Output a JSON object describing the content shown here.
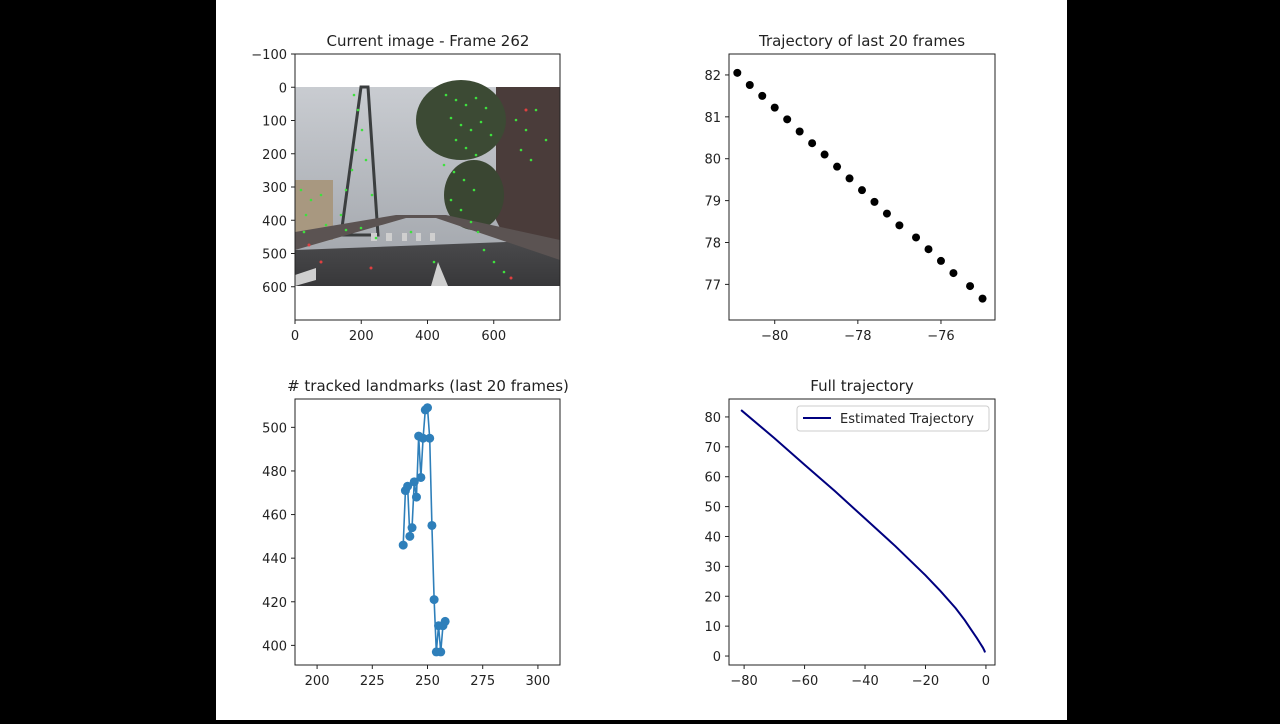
{
  "figure": {
    "background": "#ffffff",
    "letterbox_color": "#000000"
  },
  "chart_data": [
    {
      "type": "image",
      "title": "Current image - Frame 262",
      "frame": 262,
      "xlabel": "",
      "ylabel": "",
      "xlim": [
        0,
        800
      ],
      "ylim": [
        700,
        -100
      ],
      "xticks": [
        0,
        200,
        400,
        600
      ],
      "yticks": [
        -100,
        0,
        100,
        200,
        300,
        400,
        500,
        600
      ],
      "image_extent": {
        "x": [
          0,
          800
        ],
        "y": [
          0,
          600
        ]
      },
      "overlay": "green feature tracks and red outlier points on street scene"
    },
    {
      "type": "scatter",
      "title": "Trajectory of last 20 frames",
      "xlabel": "",
      "ylabel": "",
      "xlim": [
        -81.1,
        -74.7
      ],
      "ylim": [
        76.15,
        82.5
      ],
      "xticks": [
        -80,
        -78,
        -76
      ],
      "yticks": [
        77,
        78,
        79,
        80,
        81,
        82
      ],
      "color": "#000000",
      "x": [
        -80.9,
        -80.6,
        -80.3,
        -80.0,
        -79.7,
        -79.4,
        -79.1,
        -78.8,
        -78.5,
        -78.2,
        -77.9,
        -77.6,
        -77.3,
        -77.0,
        -76.6,
        -76.3,
        -76.0,
        -75.7,
        -75.3,
        -75.0
      ],
      "y": [
        82.05,
        81.76,
        81.5,
        81.22,
        80.94,
        80.65,
        80.37,
        80.1,
        79.81,
        79.53,
        79.25,
        78.97,
        78.69,
        78.41,
        78.12,
        77.84,
        77.56,
        77.27,
        76.96,
        76.66
      ]
    },
    {
      "type": "line",
      "title": "# tracked landmarks (last 20 frames)",
      "xlabel": "",
      "ylabel": "",
      "xlim": [
        190,
        310
      ],
      "ylim": [
        391,
        513
      ],
      "xticks": [
        200,
        225,
        250,
        275,
        300
      ],
      "yticks": [
        400,
        420,
        440,
        460,
        480,
        500
      ],
      "color": "#2e7fba",
      "markers": true,
      "x": [
        239,
        240,
        241,
        242,
        243,
        244,
        245,
        246,
        247,
        248,
        249,
        250,
        251,
        252,
        253,
        254,
        255,
        256,
        257,
        258
      ],
      "y": [
        446,
        471,
        473,
        450,
        454,
        475,
        468,
        496,
        477,
        495,
        508,
        509,
        495,
        455,
        421,
        397,
        409,
        397,
        409,
        411
      ]
    },
    {
      "type": "line",
      "title": "Full trajectory",
      "xlabel": "",
      "ylabel": "",
      "xlim": [
        -85,
        3
      ],
      "ylim": [
        -3,
        86
      ],
      "xticks": [
        -80,
        -60,
        -40,
        -20,
        0
      ],
      "yticks": [
        0,
        10,
        20,
        30,
        40,
        50,
        60,
        70,
        80
      ],
      "legend": {
        "position": "upper right",
        "entries": [
          "Estimated Trajectory"
        ]
      },
      "series": [
        {
          "name": "Estimated Trajectory",
          "color": "#00007f",
          "x": [
            -81,
            -70,
            -60,
            -50,
            -40,
            -30,
            -20,
            -15,
            -10,
            -7,
            -5,
            -3,
            -2,
            -1,
            -0.5,
            -0.3
          ],
          "y": [
            82.3,
            72.9,
            64.0,
            55.2,
            46.0,
            36.8,
            27.0,
            21.7,
            16.0,
            12.0,
            9.0,
            6.0,
            4.4,
            2.8,
            1.8,
            1.2
          ]
        }
      ]
    }
  ]
}
